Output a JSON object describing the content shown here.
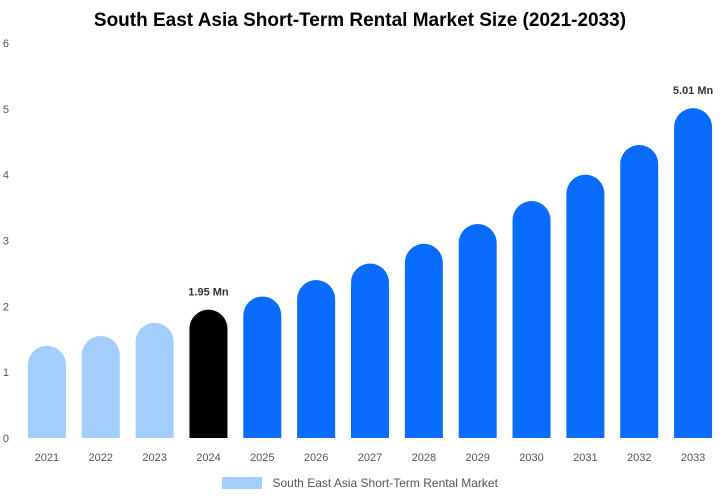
{
  "chart_data": {
    "type": "bar",
    "title": "South East Asia Short-Term Rental Market Size (2021-2033)",
    "categories": [
      "2021",
      "2022",
      "2023",
      "2024",
      "2025",
      "2026",
      "2027",
      "2028",
      "2029",
      "2030",
      "2031",
      "2032",
      "2033"
    ],
    "series": [
      {
        "name": "South East Asia Short-Term Rental Market",
        "values": [
          1.4,
          1.55,
          1.75,
          1.95,
          2.15,
          2.4,
          2.65,
          2.95,
          3.25,
          3.6,
          4.0,
          4.45,
          5.01
        ]
      }
    ],
    "ylim": [
      0,
      6
    ],
    "yticks": [
      0,
      1,
      2,
      3,
      4,
      5,
      6
    ],
    "data_labels": [
      {
        "category": "2024",
        "text": "1.95 Mn"
      },
      {
        "category": "2033",
        "text": "5.01 Mn"
      }
    ],
    "bar_colors": {
      "historical": "#a3cdfb",
      "base_year": "#000000",
      "forecast": "#0a6cfd"
    },
    "base_year": "2024",
    "grid": false,
    "legend_position": "bottom-center",
    "legend_swatch_color": "#a3cdfb"
  }
}
